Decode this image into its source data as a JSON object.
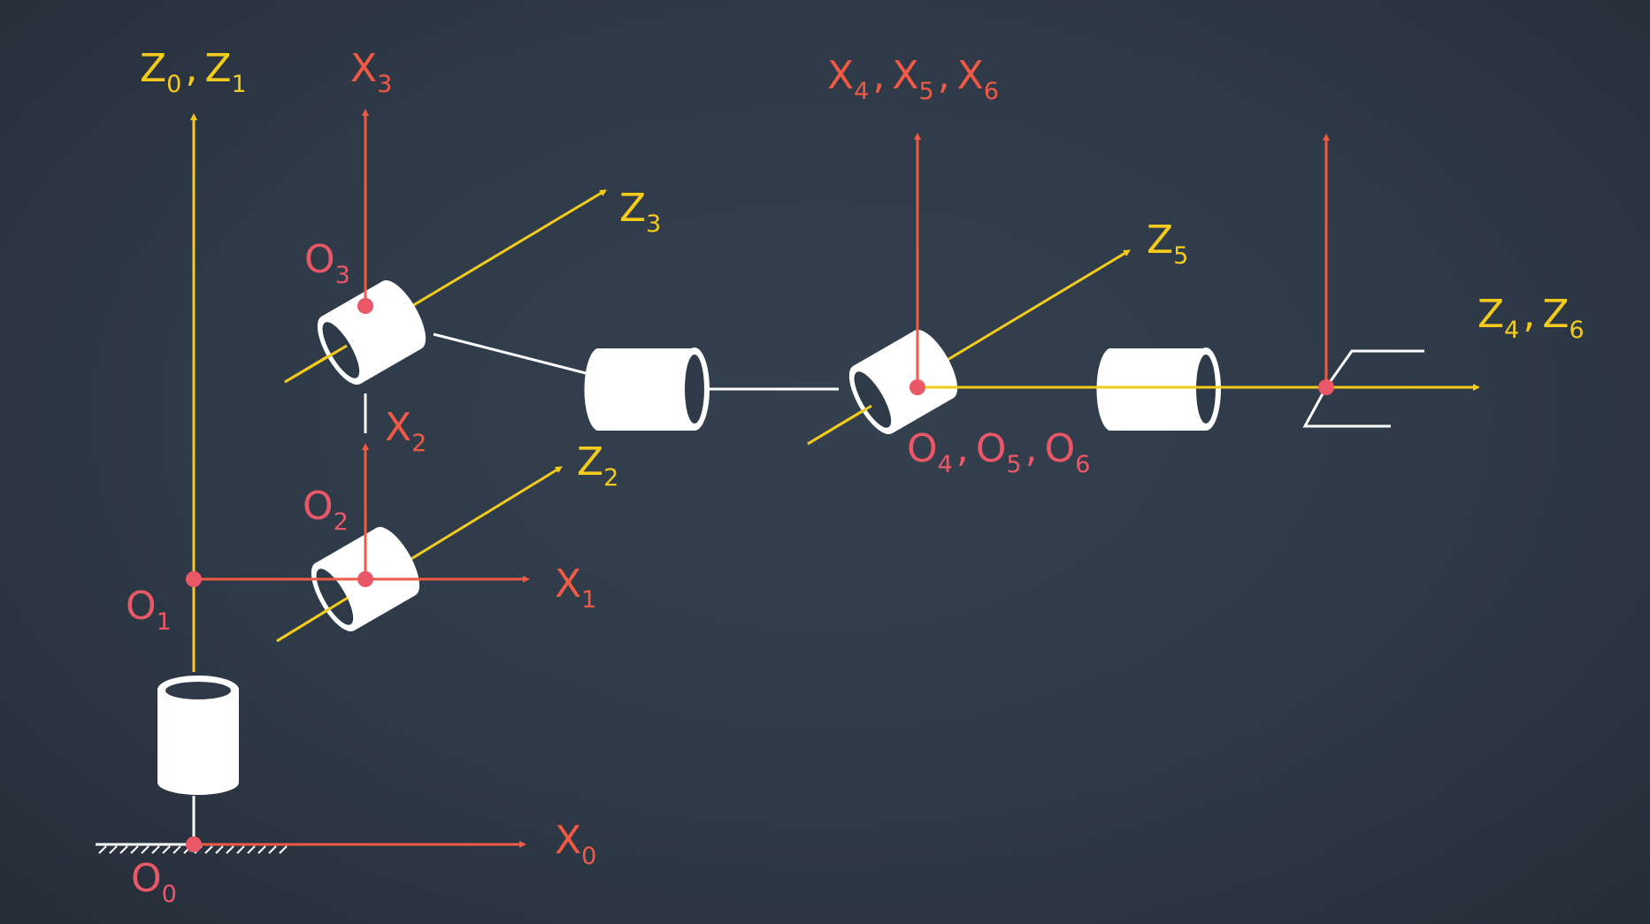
{
  "colors": {
    "background": "#2f3a48",
    "z_axis": "#f2cb1d",
    "x_axis": "#f05a45",
    "origin": "#ea5867",
    "origin_label": "#ea5867",
    "link": "#ffffff"
  },
  "frames": [
    {
      "name": "frame-0",
      "origin": "O0",
      "x_axis": "X0"
    },
    {
      "name": "frame-1",
      "origin": "O1",
      "z_axis": "Z0, Z1",
      "x_axis": "X1"
    },
    {
      "name": "frame-2",
      "origin": "O2",
      "z_axis": "Z2",
      "x_axis": "X2"
    },
    {
      "name": "frame-3",
      "origin": "O3",
      "z_axis": "Z3",
      "x_axis": "X3"
    },
    {
      "name": "frame-4-5-6",
      "origin": "O4, O5, O6",
      "z_axis": "Z5",
      "x_axis": "X4, X5, X6"
    },
    {
      "name": "gripper-frame",
      "z_axis": "Z4, Z6"
    }
  ],
  "labels": {
    "z01": {
      "main1": "Z",
      "sub1": "0",
      "sep": ",",
      "main2": "Z",
      "sub2": "1"
    },
    "x3": {
      "main": "X",
      "sub": "3"
    },
    "z3": {
      "main": "Z",
      "sub": "3"
    },
    "o3": {
      "main": "O",
      "sub": "3"
    },
    "x456": {
      "main1": "X",
      "sub1": "4",
      "sep1": ",",
      "main2": "X",
      "sub2": "5",
      "sep2": ",",
      "main3": "X",
      "sub3": "6"
    },
    "z5": {
      "main": "Z",
      "sub": "5"
    },
    "z46": {
      "main1": "Z",
      "sub1": "4",
      "sep": ",",
      "main2": "Z",
      "sub2": "6"
    },
    "x2": {
      "main": "X",
      "sub": "2"
    },
    "o456": {
      "main1": "O",
      "sub1": "4",
      "sep1": ",",
      "main2": "O",
      "sub2": "5",
      "sep2": ",",
      "main3": "O",
      "sub3": "6"
    },
    "z2": {
      "main": "Z",
      "sub": "2"
    },
    "o2": {
      "main": "O",
      "sub": "2"
    },
    "x1": {
      "main": "X",
      "sub": "1"
    },
    "o1": {
      "main": "O",
      "sub": "1"
    },
    "x0": {
      "main": "X",
      "sub": "0"
    },
    "o0": {
      "main": "O",
      "sub": "0"
    }
  }
}
